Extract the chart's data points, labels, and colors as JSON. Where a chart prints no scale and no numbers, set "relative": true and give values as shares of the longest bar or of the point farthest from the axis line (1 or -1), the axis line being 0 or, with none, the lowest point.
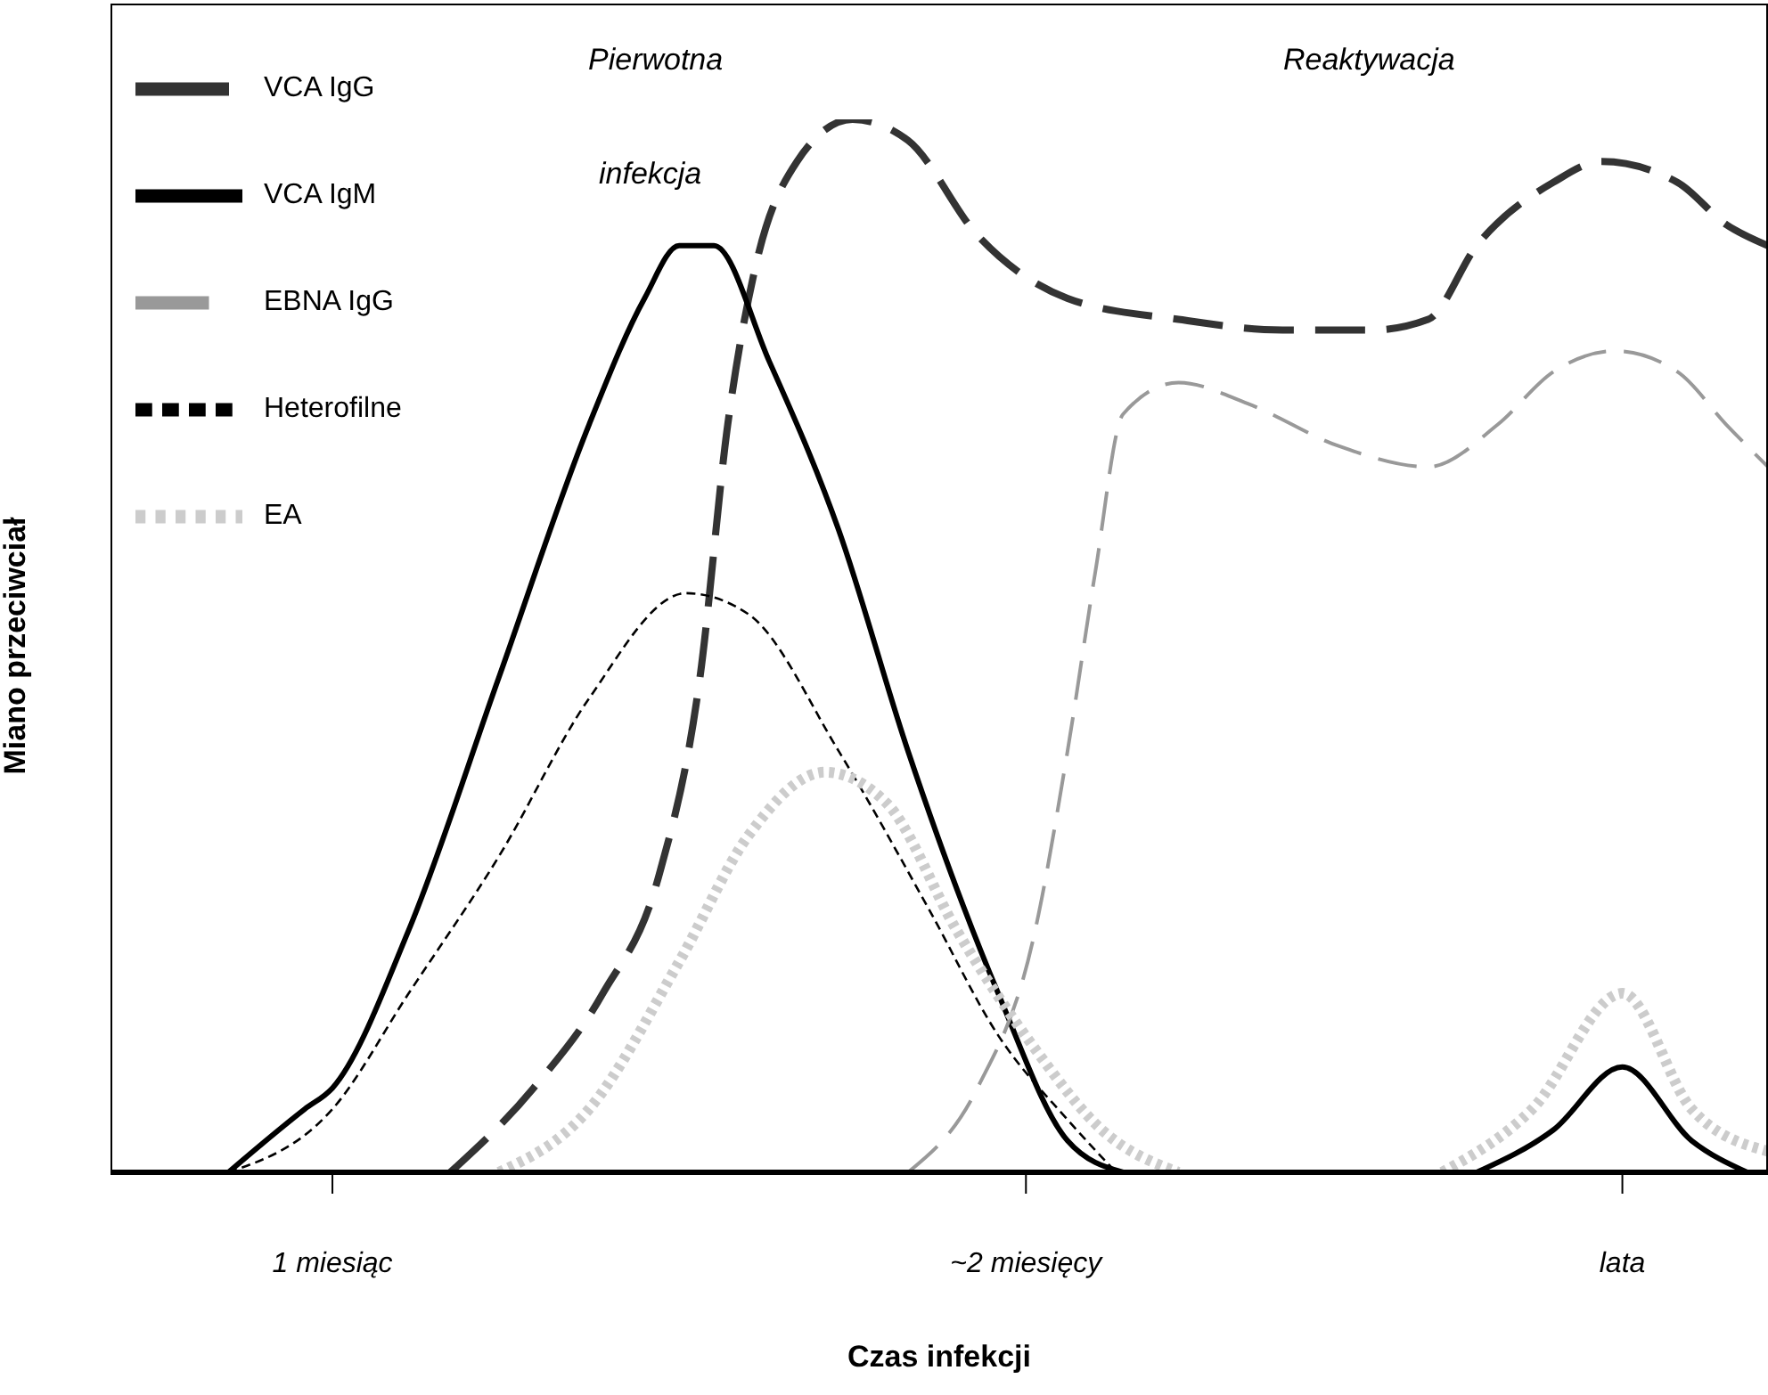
{
  "chart_data": {
    "type": "line",
    "relative": true,
    "xlabel": "Czas infekcji",
    "ylabel": "Miano przeciwciał",
    "xlim": [
      0.68,
      3.07
    ],
    "xticks": [
      {
        "value": 1,
        "label": "1 miesiąc"
      },
      {
        "value": 2,
        "label": "~2 miesięcy"
      },
      {
        "value": 2.86,
        "label": "lata"
      }
    ],
    "legend": "top left",
    "grid": false,
    "marker": "none",
    "annotations": [
      "Pierwotna",
      "infekcja",
      "Reaktywacja"
    ],
    "series": [
      {
        "name": "VCA IgG",
        "color": "#333333",
        "line_style": "dashed",
        "x": [
          1.17,
          1.29,
          1.39,
          1.47,
          1.53,
          1.57,
          1.61,
          1.67,
          1.75,
          1.83,
          1.93,
          2.06,
          2.22,
          2.37,
          2.5,
          2.58,
          2.65,
          2.76,
          2.83,
          2.94,
          3.01,
          3.07
        ],
        "values": [
          0,
          0.08,
          0.17,
          0.28,
          0.47,
          0.71,
          0.86,
          0.96,
          1.0,
          0.98,
          0.89,
          0.83,
          0.81,
          0.8,
          0.8,
          0.81,
          0.88,
          0.94,
          0.96,
          0.94,
          0.9,
          0.88
        ]
      },
      {
        "name": "VCA IgM",
        "color": "#000000",
        "line_style": "solid",
        "x": [
          0.85,
          0.96,
          1.0,
          1.11,
          1.24,
          1.37,
          1.45,
          1.5,
          1.55,
          1.63,
          1.73,
          1.83,
          1.96,
          2.06,
          2.14,
          2.4,
          2.65,
          2.76,
          2.86,
          2.96,
          3.04
        ],
        "values": [
          0,
          0.06,
          0.08,
          0.23,
          0.47,
          0.71,
          0.83,
          0.88,
          0.88,
          0.77,
          0.61,
          0.4,
          0.17,
          0.03,
          0,
          null,
          0,
          0.04,
          0.1,
          0.03,
          0
        ]
      },
      {
        "name": "EBNA IgG",
        "color": "#999999",
        "line_style": "dashed",
        "x": [
          1.83,
          1.93,
          2.01,
          2.06,
          2.1,
          2.14,
          2.22,
          2.32,
          2.45,
          2.58,
          2.68,
          2.76,
          2.85,
          2.94,
          3.01,
          3.07
        ],
        "values": [
          0,
          0.08,
          0.22,
          0.4,
          0.57,
          0.72,
          0.75,
          0.73,
          0.69,
          0.67,
          0.71,
          0.76,
          0.78,
          0.76,
          0.71,
          0.67
        ]
      },
      {
        "name": "Heterofilne",
        "color": "#000000",
        "line_style": "dashed",
        "x": [
          0.85,
          1.0,
          1.11,
          1.24,
          1.37,
          1.51,
          1.6,
          1.73,
          1.86,
          1.96,
          2.06,
          2.13
        ],
        "values": [
          0,
          0.06,
          0.17,
          0.3,
          0.45,
          0.55,
          0.53,
          0.4,
          0.25,
          0.13,
          0.05,
          0
        ]
      },
      {
        "name": "EA",
        "color": "#cccccc",
        "line_style": "dotted",
        "x": [
          1.24,
          1.37,
          1.5,
          1.6,
          1.71,
          1.8,
          1.9,
          2.01,
          2.11,
          2.22,
          2.4,
          2.6,
          2.73,
          2.86,
          2.96,
          3.07
        ],
        "values": [
          0,
          0.06,
          0.2,
          0.32,
          0.38,
          0.35,
          0.23,
          0.12,
          0.04,
          0,
          null,
          0,
          0.06,
          0.17,
          0.06,
          0.02
        ]
      }
    ]
  }
}
